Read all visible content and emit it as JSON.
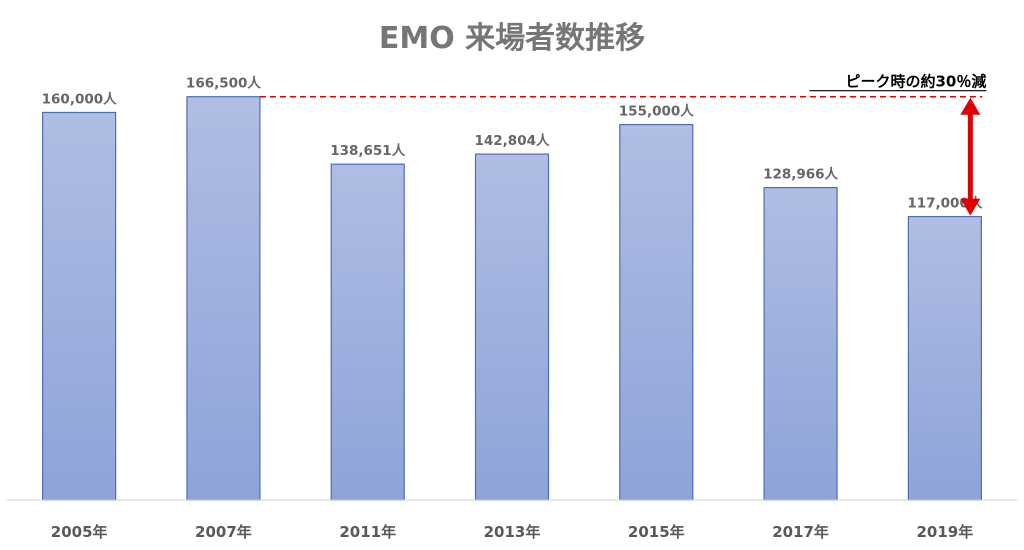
{
  "chart_data": {
    "type": "bar",
    "title": "EMO 来場者数推移",
    "categories": [
      "2005年",
      "2007年",
      "2011年",
      "2013年",
      "2015年",
      "2017年",
      "2019年"
    ],
    "values": [
      160000,
      166500,
      138651,
      142804,
      155000,
      128966,
      117000
    ],
    "data_labels": [
      "160,000人",
      "166,500人",
      "138,651人",
      "142,804人",
      "155,000人",
      "128,966人",
      "117,000人"
    ],
    "ylim": [
      0,
      180000
    ],
    "grid": false,
    "legend": "none",
    "annotation": {
      "text": "ピーク時の約30％減",
      "from_value": 166500,
      "to_value": 117000,
      "to_category": "2019年"
    },
    "colors": {
      "bar_top": "#b0bde4",
      "bar_bottom": "#8ea3d8",
      "bar_stroke": "#4a6fb5",
      "annotation_line": "#e00000",
      "arrow": "#e00000",
      "axis": "#d0d0d0"
    }
  }
}
